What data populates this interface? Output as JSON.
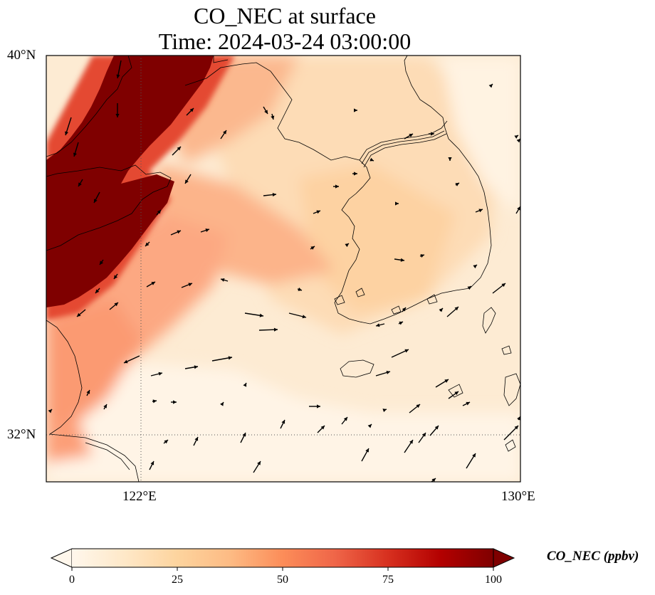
{
  "title": {
    "line1": "CO_NEC at surface",
    "line2": "Time: 2024-03-24 03:00:00"
  },
  "axes": {
    "lat_labels": [
      "40°N",
      "32°N"
    ],
    "lon_labels": [
      "122°E",
      "130°E"
    ]
  },
  "colorbar": {
    "label": "CO_NEC (ppbv)",
    "ticks": [
      "0",
      "25",
      "50",
      "75",
      "100"
    ],
    "min": 0,
    "max": 100,
    "extend": "both",
    "colormap": "OrRd",
    "colors": [
      "#fff7ec",
      "#fee8c8",
      "#fdd49e",
      "#fdbb84",
      "#fc8d59",
      "#ef6548",
      "#d7301f",
      "#b30000",
      "#7f0000"
    ]
  },
  "map": {
    "extent": {
      "lon_min": 120,
      "lon_max": 130,
      "lat_min": 31,
      "lat_max": 40
    },
    "gridlines": "dotted",
    "coastlines": true,
    "wind_vectors": true
  }
}
